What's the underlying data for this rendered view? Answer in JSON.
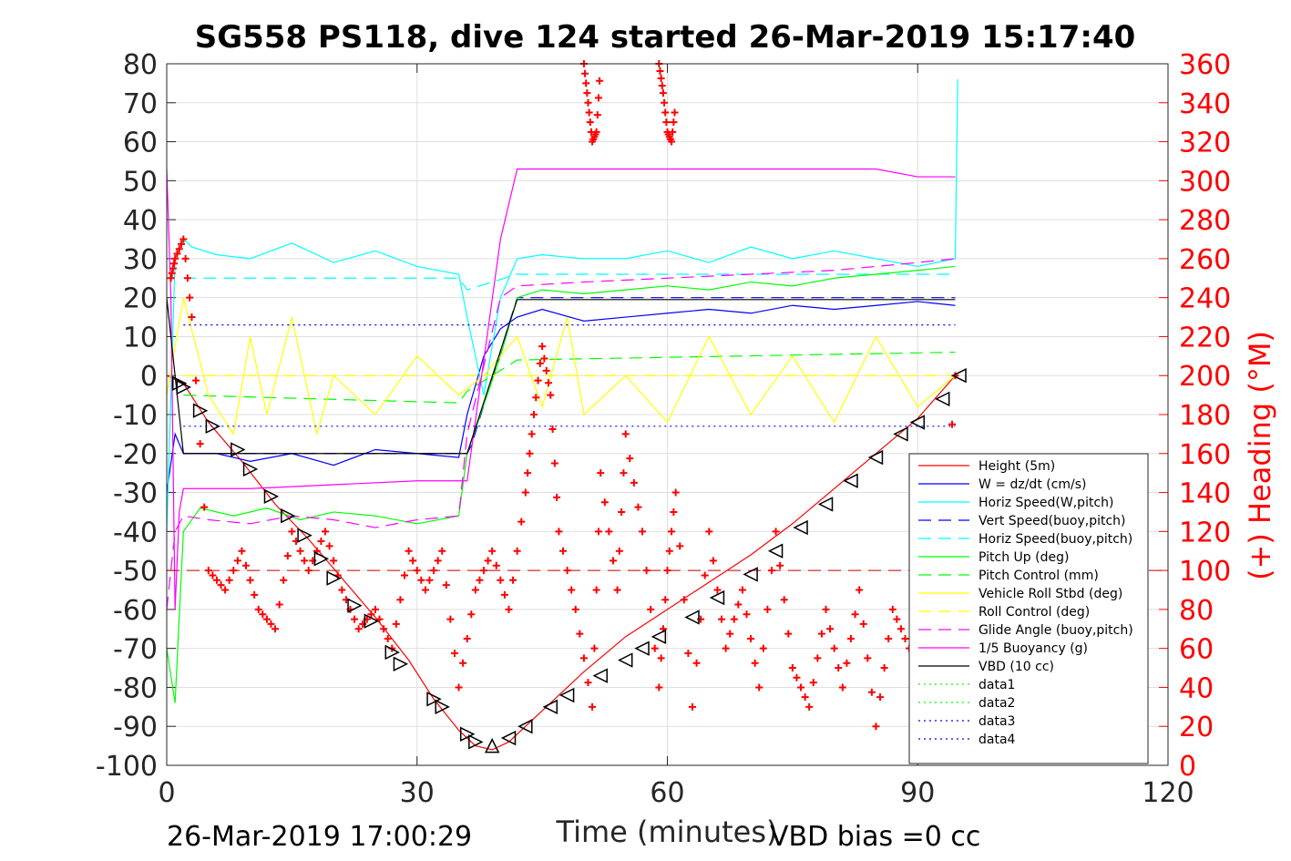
{
  "chart_data": {
    "type": "line",
    "title": "SG558 PS118, dive 124 started 26-Mar-2019 15:17:40",
    "xlabel": "Time (minutes)",
    "ylabel_left": "",
    "ylabel_right": "(+) Heading (°M)",
    "xlim": [
      0,
      120
    ],
    "ylim_left": [
      -100,
      80
    ],
    "ylim_right": [
      0,
      360
    ],
    "x_ticks": [
      "0",
      "30",
      "60",
      "90",
      "120"
    ],
    "y_ticks_left": [
      "80",
      "70",
      "60",
      "50",
      "40",
      "30",
      "20",
      "10",
      "0",
      "-10",
      "-20",
      "-30",
      "-40",
      "-50",
      "-60",
      "-70",
      "-80",
      "-90",
      "-100"
    ],
    "y_ticks_right": [
      "360",
      "340",
      "320",
      "300",
      "280",
      "260",
      "240",
      "220",
      "200",
      "180",
      "160",
      "140",
      "120",
      "100",
      "80",
      "60",
      "40",
      "20",
      "0"
    ],
    "grid": true,
    "legend_position": "bottom-right",
    "footer_left": "26-Mar-2019 17:00:29",
    "footer_right": "VBD bias =0 cc",
    "series": [
      {
        "name": "Height (5m)",
        "color": "#ff0000",
        "style": "solid",
        "x": [
          0,
          2,
          5,
          9,
          13,
          17,
          21,
          25,
          29,
          32,
          35,
          37,
          39,
          41,
          43,
          46,
          50,
          55,
          60,
          65,
          70,
          75,
          80,
          85,
          90,
          94.5
        ],
        "y": [
          0,
          -2,
          -12,
          -22,
          -33,
          -42,
          -52,
          -62,
          -73,
          -83,
          -91,
          -95,
          -96,
          -94,
          -90,
          -84,
          -76,
          -67,
          -60,
          -53,
          -46,
          -38,
          -29,
          -20,
          -11,
          0
        ]
      },
      {
        "name": "W = dz/dt (cm/s)",
        "color": "#0000ff",
        "style": "solid",
        "x": [
          0,
          1,
          2,
          3,
          6,
          10,
          15,
          20,
          25,
          30,
          35,
          36,
          38,
          40,
          42,
          45,
          50,
          55,
          60,
          65,
          70,
          75,
          80,
          85,
          90,
          94.5
        ],
        "y": [
          -30,
          -15,
          -20,
          -20,
          -20,
          -22,
          -20,
          -23,
          -19,
          -20,
          -21,
          -10,
          5,
          12,
          15,
          17,
          14,
          15,
          16,
          17,
          16,
          18,
          17,
          18,
          19,
          18
        ]
      },
      {
        "name": "Horiz Speed(W,pitch)",
        "color": "#00ffff",
        "style": "solid",
        "x": [
          0,
          1,
          2,
          3,
          6,
          10,
          15,
          20,
          25,
          30,
          35,
          36,
          38,
          40,
          42,
          45,
          50,
          55,
          60,
          65,
          70,
          75,
          80,
          85,
          90,
          94.5,
          94.8
        ],
        "y": [
          -40,
          30,
          35,
          33,
          31,
          30,
          34,
          29,
          32,
          28,
          26,
          15,
          -5,
          20,
          30,
          31,
          30,
          30,
          32,
          29,
          33,
          30,
          32,
          30,
          28,
          30,
          76
        ]
      },
      {
        "name": "Vert Speed(buoy,pitch)",
        "color": "#0000ff",
        "style": "dashed",
        "x": [
          2,
          36,
          36.5,
          42,
          94.5
        ],
        "y": [
          -20,
          -20,
          -18,
          20,
          20
        ]
      },
      {
        "name": "Horiz Speed(buoy,pitch)",
        "color": "#00ffff",
        "style": "dashed",
        "x": [
          2,
          35,
          36,
          42,
          94.5
        ],
        "y": [
          25,
          25,
          22,
          26,
          26
        ]
      },
      {
        "name": "Pitch Up (deg)",
        "color": "#00ff00",
        "style": "solid",
        "x": [
          0,
          1,
          2,
          4,
          8,
          12,
          16,
          20,
          25,
          30,
          35,
          36,
          40,
          42,
          45,
          50,
          55,
          60,
          65,
          70,
          75,
          80,
          85,
          90,
          94.5
        ],
        "y": [
          -70,
          -84,
          -40,
          -34,
          -36,
          -34,
          -37,
          -35,
          -36,
          -38,
          -36,
          -20,
          5,
          20,
          22,
          21,
          22,
          23,
          22,
          24,
          23,
          25,
          26,
          27,
          28
        ]
      },
      {
        "name": "Pitch Control (mm)",
        "color": "#00ff00",
        "style": "dashed",
        "x": [
          2,
          35,
          36,
          42,
          94.5
        ],
        "y": [
          -5,
          -7,
          -4,
          4,
          6
        ]
      },
      {
        "name": "Vehicle Roll Stbd (deg)",
        "color": "#ffff00",
        "style": "solid",
        "x": [
          0,
          2,
          5,
          8,
          10,
          12,
          15,
          18,
          20,
          25,
          30,
          35,
          38,
          42,
          45,
          48,
          50,
          55,
          60,
          65,
          70,
          75,
          80,
          85,
          90,
          94.5
        ],
        "y": [
          -5,
          20,
          -5,
          -15,
          10,
          -10,
          15,
          -15,
          0,
          -10,
          5,
          -5,
          0,
          10,
          -8,
          15,
          -10,
          0,
          -12,
          10,
          -10,
          5,
          -12,
          10,
          -8,
          0
        ]
      },
      {
        "name": "Roll Control (deg)",
        "color": "#ffff00",
        "style": "dashed",
        "x": [
          2,
          94.5
        ],
        "y": [
          0,
          0
        ]
      },
      {
        "name": "Glide Angle (buoy,pitch)",
        "color": "#ff00ff",
        "style": "dashed",
        "x": [
          0,
          1,
          2,
          5,
          10,
          15,
          20,
          25,
          30,
          35,
          36,
          40,
          42,
          50,
          60,
          70,
          80,
          90,
          94.5
        ],
        "y": [
          -60,
          -40,
          -36,
          -37,
          -38,
          -36,
          -37,
          -39,
          -37,
          -36,
          -15,
          20,
          23,
          24,
          25,
          26,
          27,
          29,
          30
        ]
      },
      {
        "name": "1/5 Buoyancy (g)",
        "color": "#ff00ff",
        "style": "solid",
        "x": [
          0,
          0.5,
          1,
          1.5,
          2,
          10,
          20,
          30,
          36,
          40,
          42,
          50,
          60,
          70,
          80,
          85,
          90,
          94.5
        ],
        "y": [
          53,
          20,
          -60,
          -35,
          -29,
          -29,
          -28,
          -27,
          -27,
          35,
          53,
          53,
          53,
          53,
          53,
          53,
          51,
          51
        ]
      },
      {
        "name": "VBD (10 cc)",
        "color": "#000000",
        "style": "solid",
        "x": [
          0,
          2,
          36,
          42,
          94.5
        ],
        "y": [
          20,
          -20,
          -20,
          19.5,
          19.5
        ]
      },
      {
        "name": "data1",
        "color": "#00ff00",
        "style": "dotted",
        "x": [],
        "y": []
      },
      {
        "name": "data2",
        "color": "#00ff00",
        "style": "dotted",
        "x": [],
        "y": []
      },
      {
        "name": "data3",
        "color": "#0000ff",
        "style": "dotted",
        "x": [
          2,
          94.5
        ],
        "y": [
          13,
          13
        ]
      },
      {
        "name": "data4",
        "color": "#0000ff",
        "style": "dotted",
        "x": [
          2,
          94.5
        ],
        "y": [
          -13,
          -13
        ]
      }
    ],
    "heading_series": {
      "marker": "+",
      "color": "#ff0000",
      "axis": "right",
      "x": [
        0.5,
        1,
        2,
        3,
        5,
        7,
        9,
        11,
        13,
        15,
        17,
        19,
        21,
        23,
        25,
        27,
        29,
        31,
        33,
        35,
        37,
        39,
        41,
        43,
        44,
        45,
        46,
        47,
        49,
        51,
        52,
        54,
        55,
        57,
        59,
        60,
        61,
        63,
        65,
        67,
        69,
        71,
        73,
        75,
        77,
        79,
        81,
        83,
        85,
        87,
        89,
        91,
        93,
        94.5
      ],
      "y": [
        250,
        260,
        270,
        230,
        100,
        90,
        110,
        80,
        70,
        120,
        100,
        120,
        90,
        70,
        80,
        60,
        110,
        90,
        110,
        40,
        90,
        110,
        80,
        140,
        180,
        215,
        190,
        120,
        80,
        30,
        150,
        90,
        170,
        120,
        40,
        100,
        140,
        30,
        120,
        60,
        90,
        40,
        120,
        50,
        30,
        80,
        40,
        90,
        20,
        80,
        60,
        110,
        100,
        200
      ]
    },
    "heading_high_segments": [
      {
        "x": [
          50,
          50.5,
          51,
          51.5,
          52
        ],
        "y": [
          360,
          340,
          320,
          325,
          360
        ]
      },
      {
        "x": [
          59,
          59.5,
          60,
          60.5,
          61
        ],
        "y": [
          360,
          345,
          325,
          320,
          340
        ]
      }
    ],
    "triangle_markers": {
      "color": "#000000",
      "x": [
        1.5,
        2,
        4,
        5.5,
        8.5,
        10,
        12.5,
        14.5,
        16.5,
        18.5,
        20,
        22.5,
        24.5,
        27,
        28,
        32,
        33,
        36,
        37,
        39,
        41,
        43,
        46,
        48,
        52,
        55,
        57,
        59,
        63,
        66,
        70,
        73,
        76,
        79,
        82,
        85,
        88,
        90,
        93,
        95
      ],
      "y": [
        -2,
        -3,
        -9,
        -13,
        -19,
        -24,
        -31,
        -36,
        -41,
        -47,
        -52,
        -59,
        -63,
        -71,
        -74,
        -83,
        -85,
        -92,
        -94,
        -95,
        -93,
        -90,
        -85,
        -82,
        -77,
        -73,
        -70,
        -67,
        -62,
        -57,
        -51,
        -45,
        -39,
        -33,
        -27,
        -21,
        -15,
        -12,
        -6,
        0
      ]
    }
  }
}
